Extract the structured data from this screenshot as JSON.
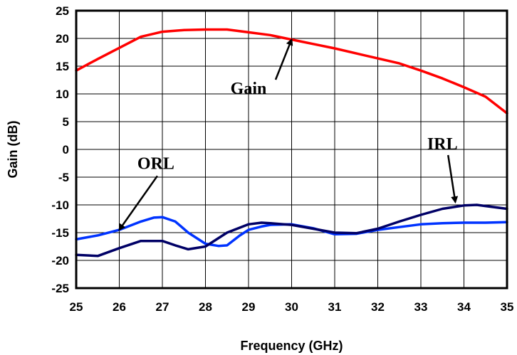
{
  "chart_data": {
    "type": "line",
    "title": "",
    "xlabel": "Frequency (GHz)",
    "ylabel": "Gain (dB)",
    "xlim": [
      25,
      35
    ],
    "ylim": [
      -25,
      25
    ],
    "grid": true,
    "x_ticks": [
      "25",
      "26",
      "27",
      "28",
      "29",
      "30",
      "31",
      "32",
      "33",
      "34",
      "35"
    ],
    "y_ticks": [
      "25",
      "20",
      "15",
      "10",
      "5",
      "0",
      "-5",
      "-10",
      "-15",
      "-20",
      "-25"
    ],
    "series": [
      {
        "color": "#ff0000",
        "x": [
          25.0,
          25.5,
          26.0,
          26.5,
          27.0,
          27.5,
          28.0,
          28.5,
          29.0,
          29.5,
          30.0,
          30.5,
          31.0,
          31.5,
          32.0,
          32.5,
          33.0,
          33.5,
          34.0,
          34.5,
          35.0
        ],
        "values": [
          14.2,
          16.3,
          18.3,
          20.3,
          21.2,
          21.5,
          21.6,
          21.6,
          21.1,
          20.6,
          19.8,
          19.0,
          18.2,
          17.3,
          16.4,
          15.5,
          14.2,
          12.8,
          11.2,
          9.5,
          6.5
        ]
      },
      {
        "color": "#0033ff",
        "x": [
          25.0,
          25.5,
          26.0,
          26.5,
          26.8,
          27.0,
          27.3,
          27.6,
          28.0,
          28.3,
          28.5,
          28.8,
          29.0,
          29.3,
          29.5,
          30.0,
          30.5,
          31.0,
          31.5,
          32.0,
          32.5,
          33.0,
          33.5,
          34.0,
          34.5,
          35.0
        ],
        "values": [
          -16.2,
          -15.5,
          -14.5,
          -13.0,
          -12.3,
          -12.2,
          -13.0,
          -15.0,
          -17.0,
          -17.4,
          -17.3,
          -15.5,
          -14.5,
          -13.9,
          -13.6,
          -13.5,
          -14.2,
          -15.3,
          -15.2,
          -14.5,
          -14.0,
          -13.5,
          -13.3,
          -13.2,
          -13.2,
          -13.1
        ]
      },
      {
        "color": "#000066",
        "x": [
          25.0,
          25.5,
          26.0,
          26.5,
          27.0,
          27.3,
          27.6,
          28.0,
          28.5,
          29.0,
          29.3,
          29.5,
          30.0,
          30.5,
          31.0,
          31.5,
          32.0,
          32.5,
          33.0,
          33.5,
          34.0,
          34.3,
          34.5,
          35.0
        ],
        "values": [
          -19.0,
          -19.2,
          -17.8,
          -16.5,
          -16.5,
          -17.3,
          -18.0,
          -17.5,
          -15.0,
          -13.5,
          -13.2,
          -13.3,
          -13.6,
          -14.3,
          -15.0,
          -15.1,
          -14.3,
          -13.0,
          -11.8,
          -10.7,
          -10.1,
          -10.0,
          -10.2,
          -10.7
        ]
      }
    ],
    "annotations": [
      {
        "text": "Gain",
        "x": 29.0,
        "y": 10.0,
        "arrow_to": [
          30.0,
          19.8
        ]
      },
      {
        "text": "ORL",
        "x": 26.85,
        "y": -3.5,
        "arrow_to": [
          26.0,
          -14.5
        ]
      },
      {
        "text": "IRL",
        "x": 33.5,
        "y": 0.0,
        "arrow_to": [
          33.8,
          -9.5
        ]
      }
    ]
  }
}
